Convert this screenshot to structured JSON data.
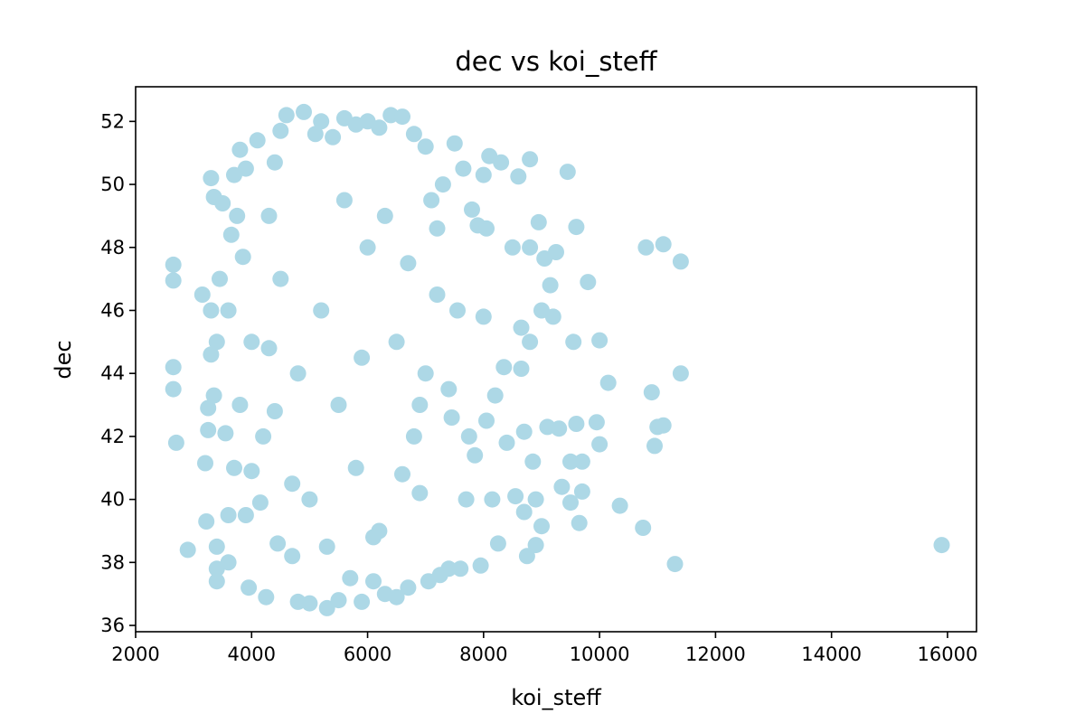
{
  "chart_data": {
    "type": "scatter",
    "title": "dec vs koi_steff",
    "xlabel": "koi_steff",
    "ylabel": "dec",
    "xlim": [
      2000,
      16500
    ],
    "ylim": [
      35.8,
      53.1
    ],
    "xticks": [
      2000,
      4000,
      6000,
      8000,
      10000,
      12000,
      14000,
      16000
    ],
    "yticks": [
      36,
      38,
      40,
      42,
      44,
      46,
      48,
      50,
      52
    ],
    "marker_color": "#add8e6",
    "series": [
      {
        "name": "dec",
        "points": [
          [
            2650,
            47.45
          ],
          [
            2650,
            46.95
          ],
          [
            2650,
            44.2
          ],
          [
            2650,
            43.5
          ],
          [
            2700,
            41.8
          ],
          [
            2900,
            38.4
          ],
          [
            3150,
            46.5
          ],
          [
            3200,
            41.15
          ],
          [
            3220,
            39.3
          ],
          [
            3250,
            42.9
          ],
          [
            3250,
            42.2
          ],
          [
            3300,
            50.2
          ],
          [
            3300,
            46.0
          ],
          [
            3300,
            44.6
          ],
          [
            3350,
            49.6
          ],
          [
            3350,
            43.3
          ],
          [
            3400,
            38.5
          ],
          [
            3400,
            37.4
          ],
          [
            3400,
            37.8
          ],
          [
            3400,
            45.0
          ],
          [
            3450,
            47.0
          ],
          [
            3500,
            49.4
          ],
          [
            3550,
            42.1
          ],
          [
            3600,
            39.5
          ],
          [
            3600,
            38.0
          ],
          [
            3650,
            48.4
          ],
          [
            3700,
            50.3
          ],
          [
            3750,
            49.0
          ],
          [
            3800,
            51.1
          ],
          [
            3850,
            47.7
          ],
          [
            3900,
            50.5
          ],
          [
            3950,
            37.2
          ],
          [
            4000,
            40.9
          ],
          [
            4100,
            51.4
          ],
          [
            4150,
            39.9
          ],
          [
            4250,
            36.9
          ],
          [
            4300,
            44.8
          ],
          [
            4400,
            50.7
          ],
          [
            4450,
            38.6
          ],
          [
            4500,
            51.7
          ],
          [
            4600,
            52.2
          ],
          [
            4700,
            38.2
          ],
          [
            4800,
            36.75
          ],
          [
            4900,
            52.3
          ],
          [
            5000,
            36.7
          ],
          [
            5100,
            51.6
          ],
          [
            5200,
            52.0
          ],
          [
            5300,
            36.55
          ],
          [
            5400,
            51.5
          ],
          [
            5500,
            36.8
          ],
          [
            5600,
            52.1
          ],
          [
            5700,
            37.5
          ],
          [
            5800,
            51.9
          ],
          [
            5900,
            36.75
          ],
          [
            6000,
            52.0
          ],
          [
            6100,
            37.4
          ],
          [
            6200,
            51.8
          ],
          [
            6300,
            37.0
          ],
          [
            6400,
            52.2
          ],
          [
            6500,
            36.9
          ],
          [
            6600,
            52.15
          ],
          [
            6700,
            37.2
          ],
          [
            6800,
            51.6
          ],
          [
            6900,
            40.2
          ],
          [
            7000,
            51.2
          ],
          [
            7050,
            37.4
          ],
          [
            7100,
            49.5
          ],
          [
            7200,
            48.6
          ],
          [
            7250,
            37.6
          ],
          [
            7300,
            50.0
          ],
          [
            7400,
            37.8
          ],
          [
            7450,
            42.6
          ],
          [
            7500,
            51.3
          ],
          [
            7550,
            46.0
          ],
          [
            7600,
            37.8
          ],
          [
            7650,
            50.5
          ],
          [
            7700,
            40.0
          ],
          [
            7750,
            42.0
          ],
          [
            7800,
            49.2
          ],
          [
            7850,
            41.4
          ],
          [
            7900,
            48.7
          ],
          [
            7950,
            37.9
          ],
          [
            8000,
            45.8
          ],
          [
            8000,
            50.3
          ],
          [
            8050,
            48.6
          ],
          [
            8050,
            42.5
          ],
          [
            8100,
            50.9
          ],
          [
            8150,
            40.0
          ],
          [
            8200,
            43.3
          ],
          [
            8250,
            38.6
          ],
          [
            8300,
            50.7
          ],
          [
            8350,
            44.2
          ],
          [
            8400,
            41.8
          ],
          [
            8500,
            48.0
          ],
          [
            8550,
            40.1
          ],
          [
            8600,
            50.25
          ],
          [
            8650,
            44.15
          ],
          [
            8650,
            45.45
          ],
          [
            8700,
            42.15
          ],
          [
            8700,
            39.6
          ],
          [
            8750,
            38.2
          ],
          [
            8800,
            48.0
          ],
          [
            8800,
            45.0
          ],
          [
            8800,
            50.8
          ],
          [
            8850,
            41.2
          ],
          [
            8900,
            38.55
          ],
          [
            8900,
            40.0
          ],
          [
            8950,
            48.8
          ],
          [
            9000,
            46.0
          ],
          [
            9000,
            39.15
          ],
          [
            9050,
            47.65
          ],
          [
            9100,
            42.3
          ],
          [
            9150,
            46.8
          ],
          [
            9200,
            45.8
          ],
          [
            9250,
            47.85
          ],
          [
            9300,
            42.25
          ],
          [
            9350,
            40.4
          ],
          [
            9450,
            50.4
          ],
          [
            9500,
            41.2
          ],
          [
            9500,
            39.9
          ],
          [
            9550,
            45.0
          ],
          [
            9600,
            42.4
          ],
          [
            9600,
            48.65
          ],
          [
            9650,
            39.25
          ],
          [
            9700,
            41.2
          ],
          [
            9700,
            40.25
          ],
          [
            9800,
            46.9
          ],
          [
            9950,
            42.45
          ],
          [
            10000,
            41.75
          ],
          [
            10000,
            45.05
          ],
          [
            10150,
            43.7
          ],
          [
            10350,
            39.8
          ],
          [
            10750,
            39.1
          ],
          [
            10800,
            48.0
          ],
          [
            10900,
            43.4
          ],
          [
            10950,
            41.7
          ],
          [
            11000,
            42.3
          ],
          [
            11100,
            42.35
          ],
          [
            11100,
            48.1
          ],
          [
            11300,
            37.95
          ],
          [
            11400,
            47.55
          ],
          [
            11400,
            44.0
          ],
          [
            15900,
            38.55
          ],
          [
            4000,
            45.0
          ],
          [
            4200,
            42.0
          ],
          [
            4500,
            47.0
          ],
          [
            4800,
            44.0
          ],
          [
            5000,
            40.0
          ],
          [
            5200,
            46.0
          ],
          [
            5500,
            43.0
          ],
          [
            5800,
            41.0
          ],
          [
            6000,
            48.0
          ],
          [
            6200,
            39.0
          ],
          [
            6500,
            45.0
          ],
          [
            6800,
            42.0
          ],
          [
            7000,
            44.0
          ],
          [
            7200,
            46.5
          ],
          [
            7400,
            43.5
          ],
          [
            3800,
            43.0
          ],
          [
            3700,
            41.0
          ],
          [
            3600,
            46.0
          ],
          [
            4300,
            49.0
          ],
          [
            5600,
            49.5
          ],
          [
            6300,
            49.0
          ],
          [
            6700,
            47.5
          ],
          [
            4700,
            40.5
          ],
          [
            5300,
            38.5
          ],
          [
            6100,
            38.8
          ],
          [
            6900,
            43.0
          ],
          [
            3900,
            39.5
          ],
          [
            4400,
            42.8
          ],
          [
            5900,
            44.5
          ],
          [
            6600,
            40.8
          ]
        ]
      }
    ]
  }
}
